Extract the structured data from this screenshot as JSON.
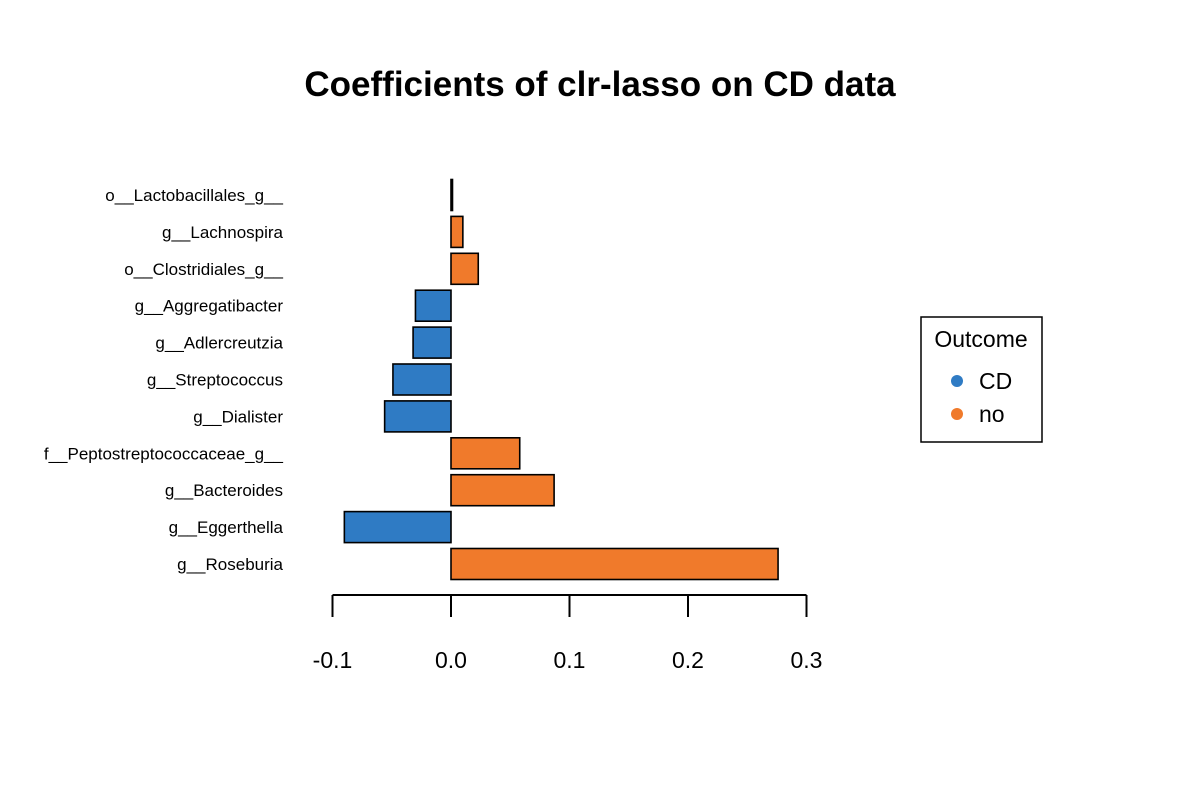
{
  "chart_data": {
    "type": "bar",
    "orientation": "horizontal",
    "title": "Coefficients of clr-lasso on CD data",
    "xlabel": "",
    "ylabel": "",
    "xlim": [
      -0.1,
      0.3
    ],
    "xticks": [
      -0.1,
      0.0,
      0.1,
      0.2,
      0.3
    ],
    "xtick_labels": [
      "-0.1",
      "0.0",
      "0.1",
      "0.2",
      "0.3"
    ],
    "grid": false,
    "categories": [
      "o__Lactobacillales_g__",
      "g__Lachnospira",
      "o__Clostridiales_g__",
      "g__Aggregatibacter",
      "g__Adlercreutzia",
      "g__Streptococcus",
      "g__Dialister",
      "f__Peptostreptococcaceae_g__",
      "g__Bacteroides",
      "g__Eggerthella",
      "g__Roseburia"
    ],
    "values": [
      0.0,
      0.01,
      0.023,
      -0.03,
      -0.032,
      -0.049,
      -0.056,
      0.058,
      0.087,
      -0.09,
      0.276
    ],
    "groups": [
      "CD",
      "no",
      "no",
      "CD",
      "CD",
      "CD",
      "CD",
      "no",
      "no",
      "CD",
      "no"
    ],
    "legend": {
      "title": "Outcome",
      "position": "right",
      "entries": [
        {
          "label": "CD",
          "color": "#2f7bc4"
        },
        {
          "label": "no",
          "color": "#f07a2b"
        }
      ]
    }
  }
}
